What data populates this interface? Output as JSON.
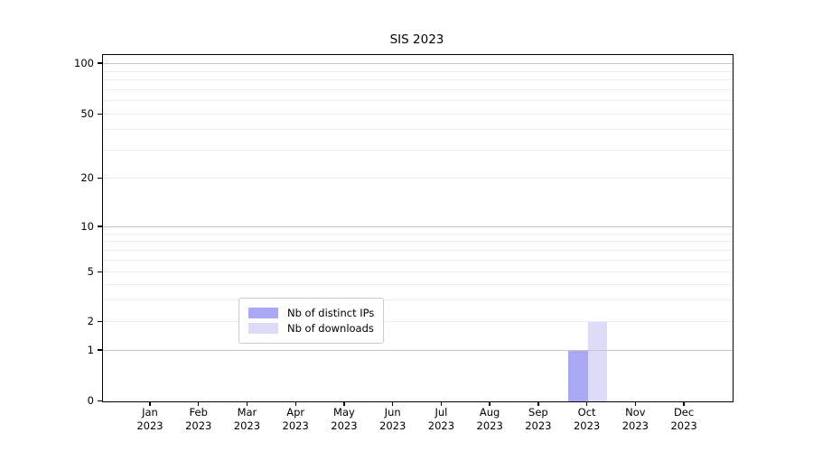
{
  "chart_data": {
    "type": "bar",
    "title": "SIS 2023",
    "categories": [
      "Jan",
      "Feb",
      "Mar",
      "Apr",
      "May",
      "Jun",
      "Jul",
      "Aug",
      "Sep",
      "Oct",
      "Nov",
      "Dec"
    ],
    "category_year": "2023",
    "series": [
      {
        "name": "Nb of distinct IPs",
        "color": "#a8a8f5",
        "values": [
          0,
          0,
          0,
          0,
          0,
          0,
          0,
          0,
          0,
          1,
          0,
          0
        ]
      },
      {
        "name": "Nb of downloads",
        "color": "#dcdcf8",
        "values": [
          0,
          0,
          0,
          0,
          0,
          0,
          0,
          0,
          0,
          2,
          0,
          0
        ]
      }
    ],
    "yticks": [
      0,
      1,
      2,
      5,
      10,
      20,
      50,
      100
    ],
    "xlabel": "",
    "ylabel": "",
    "yscale": "symlog",
    "ylim": [
      0,
      110
    ],
    "grid": "horizontal",
    "legend_position": "bottom-center"
  },
  "colors": {
    "major_grid": "#c6c6c6",
    "minor_grid": "#ececec",
    "axis": "#000000",
    "background": "#ffffff",
    "legend_border": "#c9c9c9"
  }
}
